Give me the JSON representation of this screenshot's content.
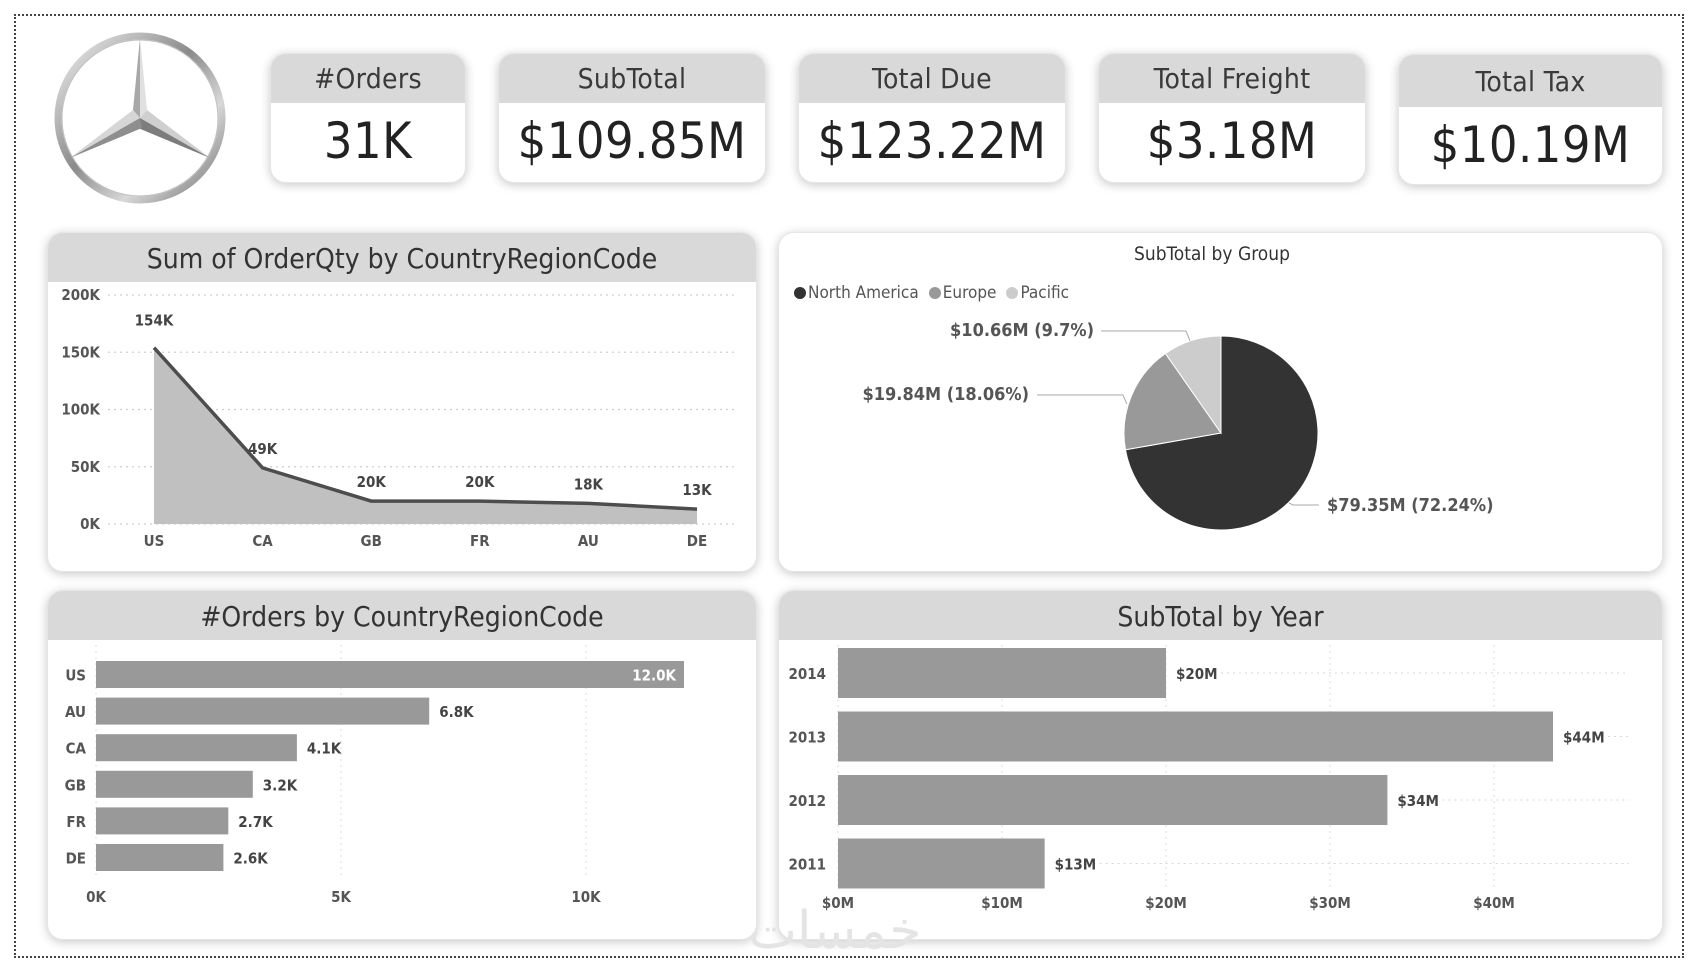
{
  "logo": {
    "icon": "mercedes-benz-star-icon"
  },
  "kpis": [
    {
      "label": "#Orders",
      "value": "31K"
    },
    {
      "label": "SubTotal",
      "value": "$109.85M"
    },
    {
      "label": "Total Due",
      "value": "$123.22M"
    },
    {
      "label": "Total Freight",
      "value": "$3.18M"
    },
    {
      "label": "Total Tax",
      "value": "$10.19M"
    }
  ],
  "watermark": "خمسات",
  "chart_data": [
    {
      "type": "area",
      "title": "Sum of OrderQty by CountryRegionCode",
      "categories": [
        "US",
        "CA",
        "GB",
        "FR",
        "AU",
        "DE"
      ],
      "values": [
        154000,
        49000,
        20000,
        20000,
        18000,
        13000
      ],
      "data_labels": [
        "154K",
        "49K",
        "20K",
        "20K",
        "18K",
        "13K"
      ],
      "yticks": [
        "0K",
        "50K",
        "100K",
        "150K",
        "200K"
      ],
      "ytick_values": [
        0,
        50000,
        100000,
        150000,
        200000
      ],
      "ylim": [
        0,
        200000
      ],
      "grid": true,
      "colors": {
        "fill": "#c0c0c0",
        "line": "#4d4d4d"
      }
    },
    {
      "type": "pie",
      "title": "SubTotal by Group",
      "legend_position": "top-left",
      "slices": [
        {
          "name": "North America",
          "value": 79.35,
          "percent": 72.24,
          "label": "$79.35M (72.24%)",
          "color": "#333333"
        },
        {
          "name": "Europe",
          "value": 19.84,
          "percent": 18.06,
          "label": "$19.84M (18.06%)",
          "color": "#999999"
        },
        {
          "name": "Pacific",
          "value": 10.66,
          "percent": 9.7,
          "label": "$10.66M (9.7%)",
          "color": "#cccccc"
        }
      ]
    },
    {
      "type": "bar",
      "orientation": "horizontal",
      "title": "#Orders by CountryRegionCode",
      "categories": [
        "US",
        "AU",
        "CA",
        "GB",
        "FR",
        "DE"
      ],
      "values": [
        12000,
        6800,
        4100,
        3200,
        2700,
        2600
      ],
      "data_labels": [
        "12.0K",
        "6.8K",
        "4.1K",
        "3.2K",
        "2.7K",
        "2.6K"
      ],
      "xticks": [
        "0K",
        "5K",
        "10K"
      ],
      "xtick_values": [
        0,
        5000,
        10000
      ],
      "xlim": [
        0,
        12500
      ],
      "grid": true,
      "colors": {
        "bar": "#999999"
      }
    },
    {
      "type": "bar",
      "orientation": "horizontal",
      "title": "SubTotal by Year",
      "categories": [
        "2014",
        "2013",
        "2012",
        "2011"
      ],
      "values": [
        20.0,
        43.6,
        33.5,
        12.6
      ],
      "units": "$M",
      "data_labels": [
        "$20M",
        "$44M",
        "$34M",
        "$13M"
      ],
      "xticks": [
        "$0M",
        "$10M",
        "$20M",
        "$30M",
        "$40M"
      ],
      "xtick_values": [
        0,
        10,
        20,
        30,
        40
      ],
      "xlim": [
        0,
        45
      ],
      "grid": true,
      "colors": {
        "bar": "#999999"
      }
    }
  ]
}
